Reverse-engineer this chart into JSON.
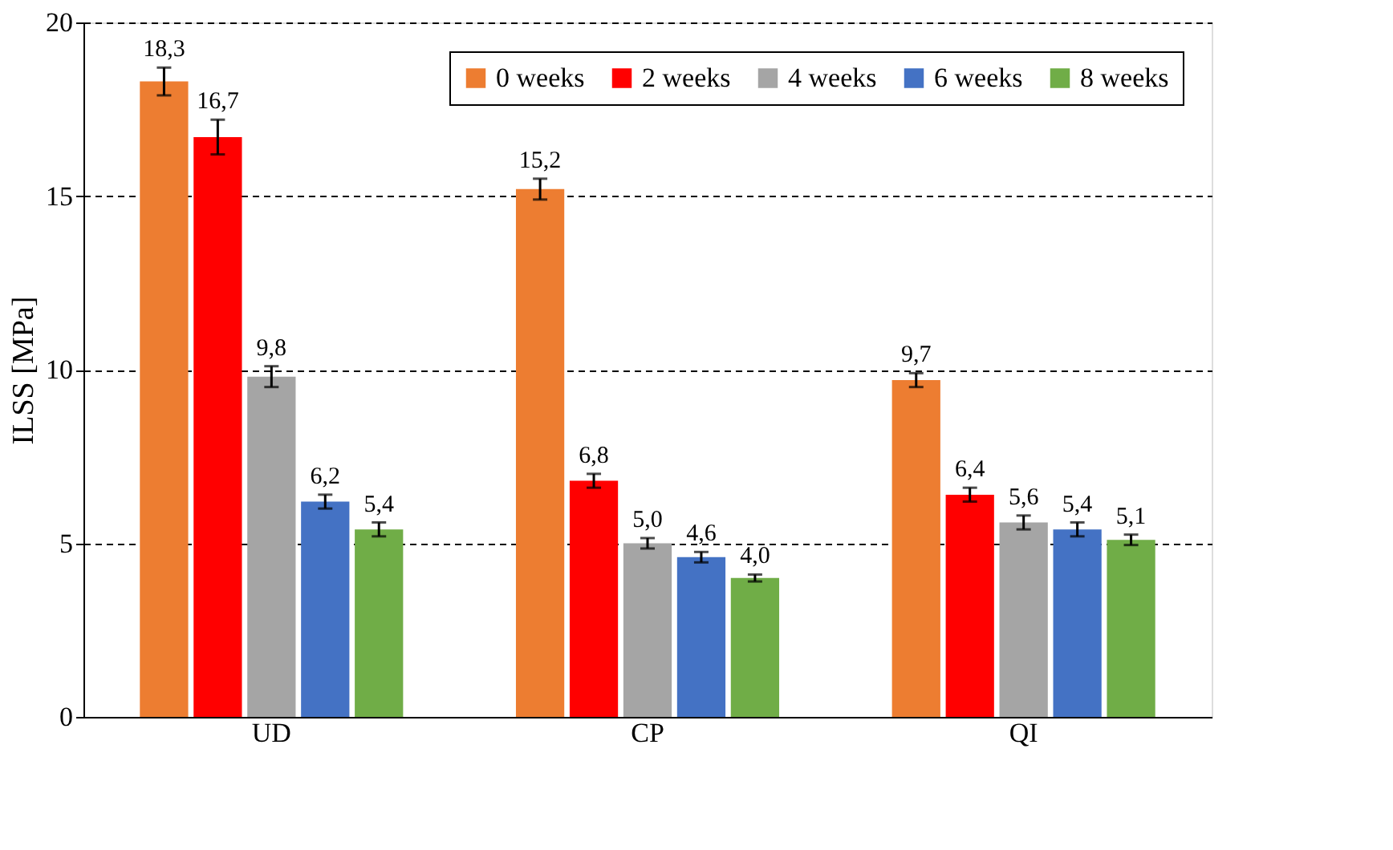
{
  "chart_data": {
    "type": "bar",
    "ylabel": "ILSS [MPa]",
    "categories": [
      "UD",
      "CP",
      "QI"
    ],
    "series": [
      {
        "name": "0 weeks",
        "color": "#ed7d31",
        "values": [
          18.3,
          15.2,
          9.7
        ],
        "errors": [
          0.4,
          0.3,
          0.2
        ],
        "value_labels": [
          "18,3",
          "15,2",
          "9,7"
        ]
      },
      {
        "name": "2 weeks",
        "color": "#ff0000",
        "values": [
          16.7,
          6.8,
          6.4
        ],
        "errors": [
          0.5,
          0.2,
          0.2
        ],
        "value_labels": [
          "16,7",
          "6,8",
          "6,4"
        ]
      },
      {
        "name": "4 weeks",
        "color": "#a5a5a5",
        "values": [
          9.8,
          5.0,
          5.6
        ],
        "errors": [
          0.3,
          0.15,
          0.2
        ],
        "value_labels": [
          "9,8",
          "5,0",
          "5,6"
        ]
      },
      {
        "name": "6 weeks",
        "color": "#4472c4",
        "values": [
          6.2,
          4.6,
          5.4
        ],
        "errors": [
          0.2,
          0.15,
          0.2
        ],
        "value_labels": [
          "6,2",
          "4,6",
          "5,4"
        ]
      },
      {
        "name": "8 weeks",
        "color": "#70ad47",
        "values": [
          5.4,
          4.0,
          5.1
        ],
        "errors": [
          0.2,
          0.1,
          0.15
        ],
        "value_labels": [
          "5,4",
          "4,0",
          "5,1"
        ]
      }
    ],
    "ylim": [
      0,
      20
    ],
    "yticks": [
      0,
      5,
      10,
      15,
      20
    ],
    "grid": "y",
    "legend": "top right"
  }
}
